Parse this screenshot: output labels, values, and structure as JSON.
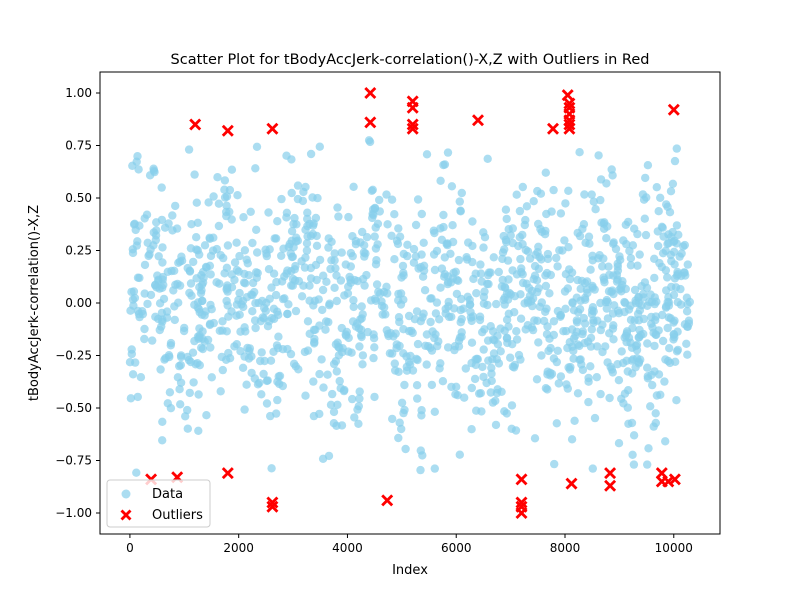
{
  "chart_data": {
    "type": "scatter",
    "title": "Scatter Plot for tBodyAccJerk-correlation()-X,Z with Outliers in Red",
    "xlabel": "Index",
    "ylabel": "tBodyAccJerk-correlation()-X,Z",
    "xlim": [
      -550,
      10850
    ],
    "ylim": [
      -1.1,
      1.1
    ],
    "xticks": [
      0,
      2000,
      4000,
      6000,
      8000,
      10000
    ],
    "yticks": [
      -1.0,
      -0.75,
      -0.5,
      -0.25,
      0.0,
      0.25,
      0.5,
      0.75,
      1.0
    ],
    "xtick_labels": [
      "0",
      "2000",
      "4000",
      "6000",
      "8000",
      "10000"
    ],
    "ytick_labels": [
      "−1.00",
      "−0.75",
      "−0.50",
      "−0.25",
      "0.00",
      "0.25",
      "0.50",
      "0.75",
      "1.00"
    ],
    "grid": false,
    "legend_position": "lower-left",
    "legend": [
      {
        "label": "Data",
        "marker": "circle",
        "color": "#87ceeb"
      },
      {
        "label": "Outliers",
        "marker": "x",
        "color": "#ff0000"
      }
    ],
    "series": [
      {
        "name": "Data",
        "color": "#87ceeb",
        "marker": "circle",
        "x_range": [
          0,
          10299
        ],
        "y_range": [
          -0.82,
          0.78
        ],
        "dense_band": [
          -0.55,
          0.6
        ]
      },
      {
        "name": "Outliers",
        "color": "#ff0000",
        "marker": "x",
        "points": [
          [
            390,
            -0.84
          ],
          [
            870,
            -0.83
          ],
          [
            1200,
            0.85
          ],
          [
            1800,
            0.82
          ],
          [
            1800,
            -0.81
          ],
          [
            2620,
            0.83
          ],
          [
            2620,
            -0.95
          ],
          [
            2620,
            -0.97
          ],
          [
            4420,
            1.0
          ],
          [
            4420,
            0.86
          ],
          [
            4730,
            -0.94
          ],
          [
            5200,
            0.96
          ],
          [
            5200,
            0.93
          ],
          [
            5200,
            0.85
          ],
          [
            5200,
            0.83
          ],
          [
            6400,
            0.87
          ],
          [
            7200,
            -0.84
          ],
          [
            7200,
            -0.95
          ],
          [
            7200,
            -0.97
          ],
          [
            7200,
            -1.0
          ],
          [
            7780,
            0.83
          ],
          [
            8050,
            0.99
          ],
          [
            8080,
            0.95
          ],
          [
            8080,
            0.93
          ],
          [
            8080,
            0.9
          ],
          [
            8080,
            0.87
          ],
          [
            8080,
            0.85
          ],
          [
            8080,
            0.83
          ],
          [
            8120,
            -0.86
          ],
          [
            8830,
            -0.81
          ],
          [
            8830,
            -0.87
          ],
          [
            9780,
            -0.81
          ],
          [
            9780,
            -0.85
          ],
          [
            9900,
            -0.85
          ],
          [
            10020,
            -0.84
          ],
          [
            10000,
            0.92
          ]
        ]
      }
    ]
  }
}
